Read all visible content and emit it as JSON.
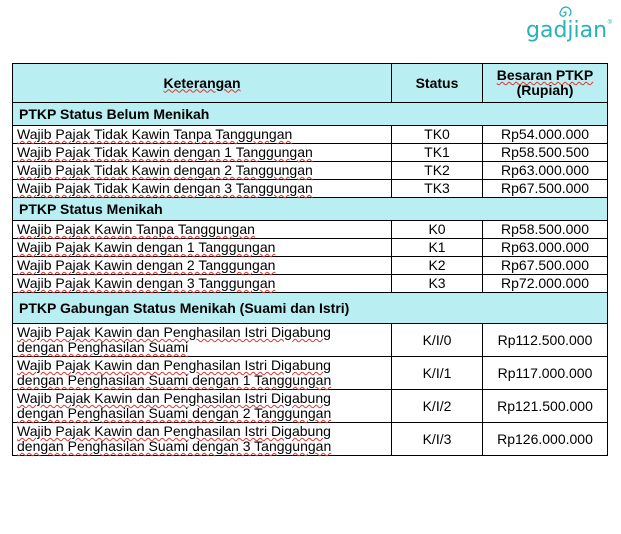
{
  "logo": {
    "text": "gadjian",
    "mark": "®"
  },
  "table": {
    "headers": {
      "keterangan": "Keterangan",
      "status": "Status",
      "besaran_line1": "Besaran PTKP",
      "besaran_line2": "(Rupiah)"
    },
    "sections": [
      {
        "title": "PTKP Status Belum Menikah",
        "rows": [
          {
            "desc": "Wajib Pajak Tidak Kawin Tanpa Tanggungan",
            "status": "TK0",
            "amount": "Rp54.000.000"
          },
          {
            "desc": "Wajib Pajak Tidak Kawin dengan 1 Tanggungan",
            "status": "TK1",
            "amount": "Rp58.500.500"
          },
          {
            "desc": "Wajib Pajak Tidak Kawin dengan 2 Tanggungan",
            "status": "TK2",
            "amount": "Rp63.000.000"
          },
          {
            "desc": "Wajib Pajak Tidak Kawin dengan 3 Tanggungan",
            "status": "TK3",
            "amount": "Rp67.500.000"
          }
        ]
      },
      {
        "title": "PTKP Status Menikah",
        "rows": [
          {
            "desc": "Wajib Pajak Kawin Tanpa Tanggungan",
            "status": "K0",
            "amount": "Rp58.500.000"
          },
          {
            "desc": "Wajib Pajak Kawin dengan 1 Tanggungan",
            "status": "K1",
            "amount": "Rp63.000.000"
          },
          {
            "desc": "Wajib Pajak Kawin dengan 2 Tanggungan",
            "status": "K2",
            "amount": "Rp67.500.000"
          },
          {
            "desc": "Wajib Pajak Kawin dengan 3 Tanggungan",
            "status": "K3",
            "amount": "Rp72.000.000"
          }
        ]
      },
      {
        "title": "PTKP Gabungan Status Menikah (Suami dan Istri)",
        "rows": [
          {
            "desc1": "Wajib Pajak Kawin dan Penghasilan Istri Digabung",
            "desc2": "dengan Penghasilan Suami",
            "status": "K/I/0",
            "amount": "Rp112.500.000"
          },
          {
            "desc1": "Wajib Pajak Kawin dan Penghasilan Istri Digabung",
            "desc2": "dengan Penghasilan Suami dengan 1 Tanggungan",
            "status": "K/I/1",
            "amount": "Rp117.000.000"
          },
          {
            "desc1": "Wajib Pajak Kawin dan Penghasilan Istri Digabung",
            "desc2": "dengan Penghasilan Suami dengan 2 Tanggungan",
            "status": "K/I/2",
            "amount": "Rp121.500.000"
          },
          {
            "desc1": "Wajib Pajak Kawin dan Penghasilan Istri Digabung",
            "desc2": "dengan Penghasilan Suami dengan 3 Tanggungan",
            "status": "K/I/3",
            "amount": "Rp126.000.000"
          }
        ]
      }
    ]
  },
  "colors": {
    "header_bg": "#b9eef2",
    "logo": "#27b3b5"
  }
}
